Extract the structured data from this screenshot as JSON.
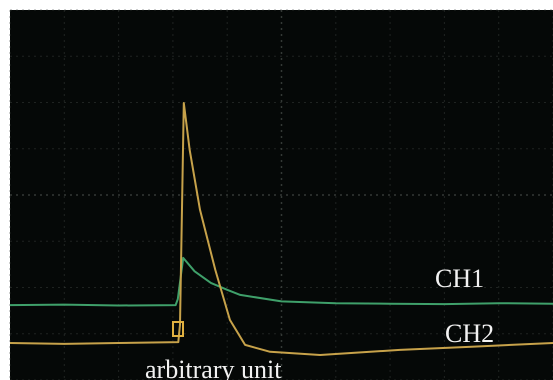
{
  "chart_data": {
    "type": "line",
    "xlim": [
      0,
      10
    ],
    "ylim": [
      0,
      8
    ],
    "xticks": [
      0,
      1,
      2,
      3,
      4,
      5,
      6,
      7,
      8,
      9,
      10
    ],
    "yticks": [
      0,
      1,
      2,
      3,
      4,
      5,
      6,
      7,
      8
    ],
    "grid": true,
    "annotations": [
      "arbitrary unit"
    ],
    "series": [
      {
        "name": "CH1",
        "color": "#3fa06a",
        "x": [
          0,
          1,
          2,
          3.05,
          3.09,
          3.19,
          3.4,
          3.7,
          4.0,
          4.24,
          5,
          6,
          7,
          8,
          9,
          10
        ],
        "values": [
          1.62,
          1.63,
          1.61,
          1.62,
          1.75,
          2.64,
          2.35,
          2.1,
          1.95,
          1.84,
          1.7,
          1.66,
          1.65,
          1.64,
          1.66,
          1.65
        ]
      },
      {
        "name": "CH2",
        "color": "#c7a24a",
        "x": [
          0,
          1,
          2,
          3.1,
          3.13,
          3.2,
          3.31,
          3.5,
          3.78,
          4.05,
          4.33,
          4.79,
          5.71,
          7.18,
          8.5,
          10
        ],
        "values": [
          0.8,
          0.78,
          0.8,
          0.82,
          1.2,
          5.99,
          4.97,
          3.68,
          2.38,
          1.3,
          0.76,
          0.61,
          0.54,
          0.65,
          0.72,
          0.8
        ]
      }
    ]
  }
}
